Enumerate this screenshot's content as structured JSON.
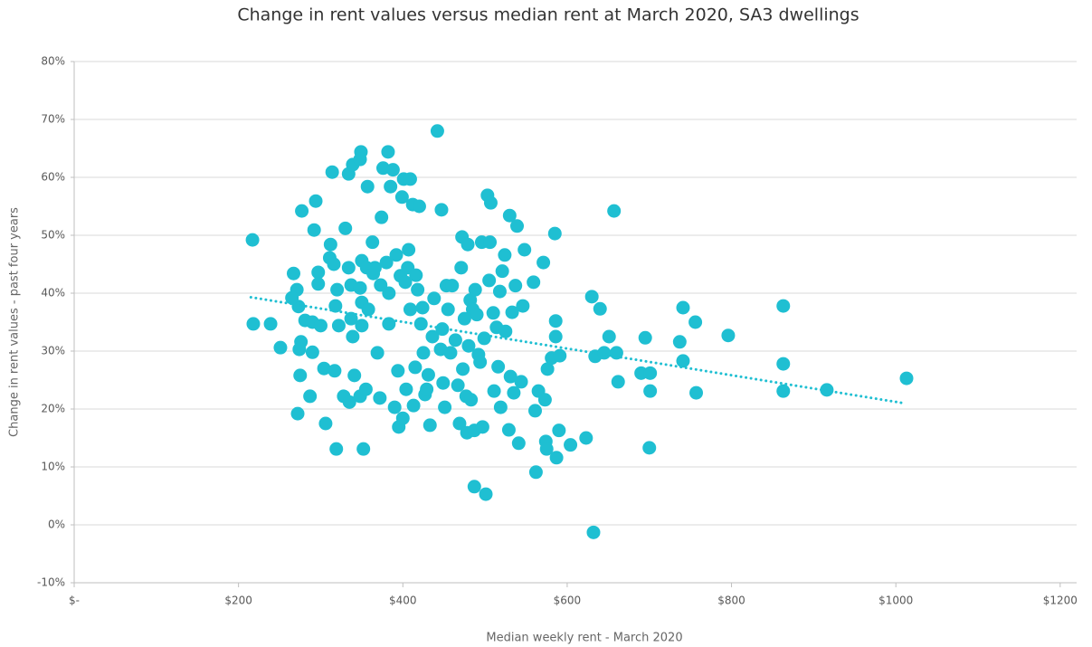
{
  "chart_data": {
    "type": "scatter",
    "title": "Change in rent values versus median rent at March 2020, SA3 dwellings",
    "x_label": "Median weekly rent - March 2020",
    "y_label": "Change in rent values - past four years",
    "color": "#1fbfd2",
    "trendline_color": "#1fbfd2",
    "grid": true,
    "xlim": [
      0,
      1220
    ],
    "ylim": [
      -10,
      80
    ],
    "xticks": [
      {
        "value": 0,
        "label": "$-"
      },
      {
        "value": 200,
        "label": "$200"
      },
      {
        "value": 400,
        "label": "$400"
      },
      {
        "value": 600,
        "label": "$600"
      },
      {
        "value": 800,
        "label": "$800"
      },
      {
        "value": 1000,
        "label": "$1000"
      },
      {
        "value": 1200,
        "label": "$1200"
      }
    ],
    "yticks": [
      {
        "value": -10,
        "label": "-10%"
      },
      {
        "value": 0,
        "label": "0%"
      },
      {
        "value": 10,
        "label": "10%"
      },
      {
        "value": 20,
        "label": "20%"
      },
      {
        "value": 30,
        "label": "30%"
      },
      {
        "value": 40,
        "label": "40%"
      },
      {
        "value": 50,
        "label": "50%"
      },
      {
        "value": 60,
        "label": "60%"
      },
      {
        "value": 70,
        "label": "70%"
      },
      {
        "value": 80,
        "label": "80%"
      }
    ],
    "x": [
      217,
      218,
      239,
      251,
      267,
      271,
      273,
      265,
      277,
      272,
      275,
      276,
      274,
      281,
      287,
      290,
      294,
      292,
      290,
      297,
      297,
      300,
      304,
      306,
      311,
      314,
      312,
      316,
      319,
      320,
      318,
      317,
      322,
      328,
      330,
      334,
      339,
      334,
      337,
      337,
      335,
      339,
      341,
      348,
      349,
      348,
      350,
      350,
      350,
      352,
      348,
      355,
      357,
      356,
      358,
      363,
      364,
      366,
      369,
      372,
      374,
      373,
      376,
      380,
      382,
      383,
      383,
      385,
      388,
      390,
      392,
      394,
      395,
      397,
      399,
      400,
      401,
      403,
      404,
      406,
      407,
      409,
      409,
      412,
      413,
      415,
      416,
      418,
      420,
      422,
      424,
      425,
      427,
      429,
      431,
      433,
      436,
      438,
      442,
      446,
      447,
      448,
      449,
      451,
      453,
      455,
      458,
      460,
      464,
      467,
      469,
      471,
      472,
      473,
      475,
      477,
      478,
      479,
      480,
      482,
      483,
      485,
      487,
      487,
      488,
      490,
      492,
      494,
      496,
      497,
      499,
      501,
      503,
      505,
      506,
      507,
      510,
      511,
      514,
      516,
      518,
      519,
      521,
      524,
      525,
      529,
      530,
      531,
      533,
      535,
      537,
      539,
      541,
      544,
      546,
      548,
      559,
      561,
      562,
      565,
      571,
      573,
      574,
      575,
      576,
      581,
      585,
      586,
      586,
      587,
      590,
      591,
      604,
      623,
      630,
      632,
      634,
      640,
      645,
      651,
      657,
      660,
      662,
      690,
      695,
      701,
      700,
      701,
      737,
      741,
      741,
      756,
      757,
      796,
      863,
      863,
      863,
      916,
      1013
    ],
    "values": [
      49.2,
      34.7,
      34.7,
      30.6,
      43.4,
      40.6,
      37.7,
      39.2,
      54.2,
      19.2,
      25.8,
      31.6,
      30.3,
      35.3,
      22.2,
      35,
      55.9,
      50.9,
      29.8,
      43.6,
      41.6,
      34.4,
      27,
      17.5,
      46.1,
      60.9,
      48.4,
      45,
      13.1,
      40.6,
      37.8,
      26.6,
      34.4,
      22.2,
      51.2,
      60.6,
      62.2,
      44.4,
      41.4,
      35.6,
      21.2,
      32.5,
      25.8,
      40.9,
      64.4,
      63.1,
      45.6,
      38.4,
      34.4,
      13.1,
      22.2,
      23.4,
      58.4,
      44.4,
      37.2,
      48.8,
      43.4,
      44.4,
      29.7,
      21.9,
      53.1,
      41.4,
      61.6,
      45.3,
      64.4,
      40,
      34.7,
      58.4,
      61.3,
      20.3,
      46.6,
      26.6,
      16.9,
      43,
      56.6,
      18.4,
      59.7,
      41.9,
      23.4,
      44.4,
      47.5,
      59.7,
      37.2,
      55.3,
      20.6,
      27.2,
      43.1,
      40.6,
      55,
      34.7,
      37.5,
      29.7,
      22.5,
      23.4,
      25.9,
      17.2,
      32.5,
      39.1,
      68,
      30.3,
      54.4,
      33.8,
      24.5,
      20.3,
      41.3,
      37.2,
      29.7,
      41.3,
      31.9,
      24.1,
      17.5,
      44.4,
      49.7,
      26.9,
      35.6,
      22.2,
      15.9,
      48.4,
      30.9,
      38.8,
      21.6,
      37.2,
      6.6,
      16.3,
      40.6,
      36.3,
      29.4,
      28.1,
      48.8,
      16.9,
      32.2,
      5.3,
      56.9,
      42.2,
      48.8,
      55.6,
      36.6,
      23.1,
      34.1,
      27.3,
      40.3,
      20.3,
      43.8,
      46.6,
      33.4,
      16.4,
      53.4,
      25.6,
      36.7,
      22.8,
      41.3,
      51.6,
      14.1,
      24.7,
      37.8,
      47.5,
      41.9,
      19.7,
      9.1,
      23.1,
      45.3,
      21.6,
      14.4,
      13.1,
      26.9,
      28.8,
      50.3,
      35.2,
      32.5,
      11.6,
      16.3,
      29.2,
      13.8,
      15,
      39.4,
      -1.3,
      29.1,
      37.3,
      29.7,
      32.5,
      54.2,
      29.7,
      24.7,
      26.2,
      32.3,
      26.2,
      13.3,
      23.1,
      31.6,
      37.5,
      28.3,
      35,
      22.8,
      32.7,
      37.8,
      27.8,
      23.1,
      23.3,
      25.3
    ],
    "trendline": {
      "x": [
        215,
        1010
      ],
      "values": [
        39.3,
        21
      ]
    }
  }
}
